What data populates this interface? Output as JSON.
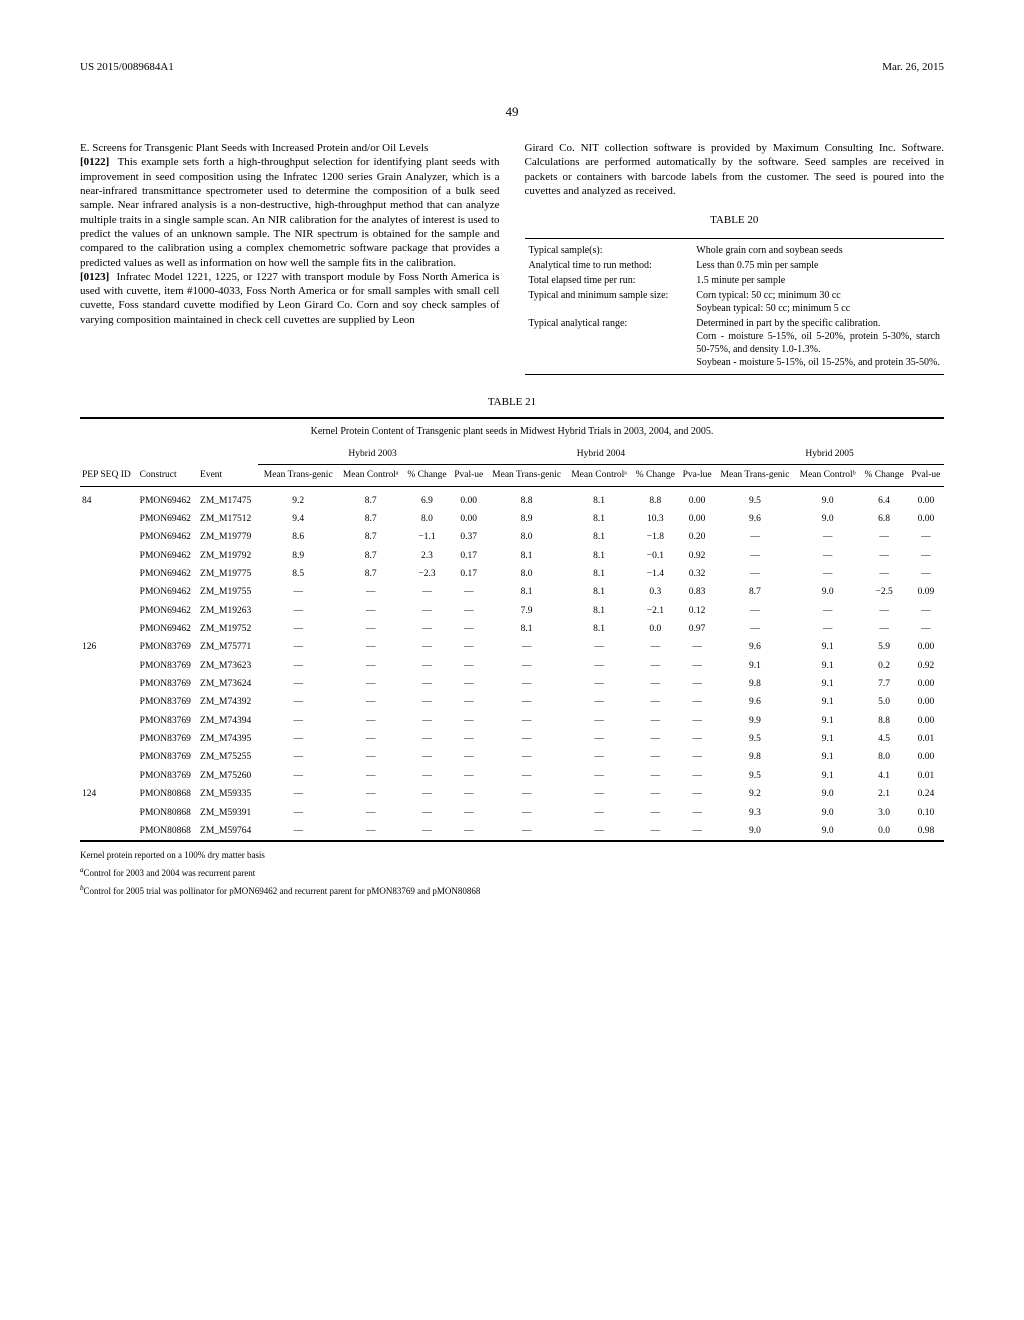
{
  "header": {
    "pub_number": "US 2015/0089684A1",
    "pub_date": "Mar. 26, 2015",
    "page_number": "49"
  },
  "left_col": {
    "section_title": "E. Screens for Transgenic Plant Seeds with Increased Protein and/or Oil Levels",
    "para1_num": "[0122]",
    "para1_text": "This example sets forth a high-throughput selection for identifying plant seeds with improvement in seed composition using the Infratec 1200 series Grain Analyzer, which is a near-infrared transmittance spectrometer used to determine the composition of a bulk seed sample. Near infrared analysis is a non-destructive, high-throughput method that can analyze multiple traits in a single sample scan. An NIR calibration for the analytes of interest is used to predict the values of an unknown sample. The NIR spectrum is obtained for the sample and compared to the calibration using a complex chemometric software package that provides a predicted values as well as information on how well the sample fits in the calibration.",
    "para2_num": "[0123]",
    "para2_text": "Infratec Model 1221, 1225, or 1227 with transport module by Foss North America is used with cuvette, item #1000-4033, Foss North America or for small samples with small cell cuvette, Foss standard cuvette modified by Leon Girard Co. Corn and soy check samples of varying composition maintained in check cell cuvettes are supplied by Leon"
  },
  "right_col": {
    "para_cont": "Girard Co. NIT collection software is provided by Maximum Consulting Inc. Software. Calculations are performed automatically by the software. Seed samples are received in packets or containers with barcode labels from the customer. The seed is poured into the cuvettes and analyzed as received."
  },
  "table20": {
    "title": "TABLE 20",
    "rows": [
      {
        "param": "Typical sample(s):",
        "val": "Whole grain corn and soybean seeds"
      },
      {
        "param": "Analytical time to run method:",
        "val": "Less than 0.75 min per sample"
      },
      {
        "param": "Total elapsed time per run:",
        "val": "1.5 minute per sample"
      },
      {
        "param": "Typical and minimum sample size:",
        "val": "Corn typical: 50 cc; minimum 30 cc\nSoybean typical: 50 cc; minimum 5 cc"
      },
      {
        "param": "Typical analytical range:",
        "val": "Determined in part by the specific calibration.\nCorn - moisture 5-15%, oil 5-20%, protein 5-30%, starch 50-75%, and density 1.0-1.3%.\nSoybean - moisture 5-15%, oil 15-25%, and protein 35-50%."
      }
    ]
  },
  "table21": {
    "title": "TABLE 21",
    "caption": "Kernel Protein Content of Transgenic plant seeds in Midwest Hybrid Trials in 2003, 2004, and 2005.",
    "year_groups": [
      "Hybrid 2003",
      "Hybrid 2004",
      "Hybrid 2005"
    ],
    "col_heads": {
      "seq": "PEP SEQ ID",
      "construct": "Construct",
      "event": "Event",
      "mt": "Mean Trans-genic",
      "mc_a": "Mean Controlᵃ",
      "mc_b": "Mean Controlᵇ",
      "pct": "% Change",
      "pv": "Pval-ue",
      "pva": "Pva-lue"
    },
    "rows": [
      {
        "seq": "84",
        "construct": "PMON69462",
        "event": "ZM_M17475",
        "h03": [
          "9.2",
          "8.7",
          "6.9",
          "0.00"
        ],
        "h04": [
          "8.8",
          "8.1",
          "8.8",
          "0.00"
        ],
        "h05": [
          "9.5",
          "9.0",
          "6.4",
          "0.00"
        ]
      },
      {
        "seq": "",
        "construct": "PMON69462",
        "event": "ZM_M17512",
        "h03": [
          "9.4",
          "8.7",
          "8.0",
          "0.00"
        ],
        "h04": [
          "8.9",
          "8.1",
          "10.3",
          "0.00"
        ],
        "h05": [
          "9.6",
          "9.0",
          "6.8",
          "0.00"
        ]
      },
      {
        "seq": "",
        "construct": "PMON69462",
        "event": "ZM_M19779",
        "h03": [
          "8.6",
          "8.7",
          "−1.1",
          "0.37"
        ],
        "h04": [
          "8.0",
          "8.1",
          "−1.8",
          "0.20"
        ],
        "h05": [
          "—",
          "—",
          "—",
          "—"
        ]
      },
      {
        "seq": "",
        "construct": "PMON69462",
        "event": "ZM_M19792",
        "h03": [
          "8.9",
          "8.7",
          "2.3",
          "0.17"
        ],
        "h04": [
          "8.1",
          "8.1",
          "−0.1",
          "0.92"
        ],
        "h05": [
          "—",
          "—",
          "—",
          "—"
        ]
      },
      {
        "seq": "",
        "construct": "PMON69462",
        "event": "ZM_M19775",
        "h03": [
          "8.5",
          "8.7",
          "−2.3",
          "0.17"
        ],
        "h04": [
          "8.0",
          "8.1",
          "−1.4",
          "0.32"
        ],
        "h05": [
          "—",
          "—",
          "—",
          "—"
        ]
      },
      {
        "seq": "",
        "construct": "PMON69462",
        "event": "ZM_M19755",
        "h03": [
          "—",
          "—",
          "—",
          "—"
        ],
        "h04": [
          "8.1",
          "8.1",
          "0.3",
          "0.83"
        ],
        "h05": [
          "8.7",
          "9.0",
          "−2.5",
          "0.09"
        ]
      },
      {
        "seq": "",
        "construct": "PMON69462",
        "event": "ZM_M19263",
        "h03": [
          "—",
          "—",
          "—",
          "—"
        ],
        "h04": [
          "7.9",
          "8.1",
          "−2.1",
          "0.12"
        ],
        "h05": [
          "—",
          "—",
          "—",
          "—"
        ]
      },
      {
        "seq": "",
        "construct": "PMON69462",
        "event": "ZM_M19752",
        "h03": [
          "—",
          "—",
          "—",
          "—"
        ],
        "h04": [
          "8.1",
          "8.1",
          "0.0",
          "0.97"
        ],
        "h05": [
          "—",
          "—",
          "—",
          "—"
        ]
      },
      {
        "seq": "126",
        "construct": "PMON83769",
        "event": "ZM_M75771",
        "h03": [
          "—",
          "—",
          "—",
          "—"
        ],
        "h04": [
          "—",
          "—",
          "—",
          "—"
        ],
        "h05": [
          "9.6",
          "9.1",
          "5.9",
          "0.00"
        ]
      },
      {
        "seq": "",
        "construct": "PMON83769",
        "event": "ZM_M73623",
        "h03": [
          "—",
          "—",
          "—",
          "—"
        ],
        "h04": [
          "—",
          "—",
          "—",
          "—"
        ],
        "h05": [
          "9.1",
          "9.1",
          "0.2",
          "0.92"
        ]
      },
      {
        "seq": "",
        "construct": "PMON83769",
        "event": "ZM_M73624",
        "h03": [
          "—",
          "—",
          "—",
          "—"
        ],
        "h04": [
          "—",
          "—",
          "—",
          "—"
        ],
        "h05": [
          "9.8",
          "9.1",
          "7.7",
          "0.00"
        ]
      },
      {
        "seq": "",
        "construct": "PMON83769",
        "event": "ZM_M74392",
        "h03": [
          "—",
          "—",
          "—",
          "—"
        ],
        "h04": [
          "—",
          "—",
          "—",
          "—"
        ],
        "h05": [
          "9.6",
          "9.1",
          "5.0",
          "0.00"
        ]
      },
      {
        "seq": "",
        "construct": "PMON83769",
        "event": "ZM_M74394",
        "h03": [
          "—",
          "—",
          "—",
          "—"
        ],
        "h04": [
          "—",
          "—",
          "—",
          "—"
        ],
        "h05": [
          "9.9",
          "9.1",
          "8.8",
          "0.00"
        ]
      },
      {
        "seq": "",
        "construct": "PMON83769",
        "event": "ZM_M74395",
        "h03": [
          "—",
          "—",
          "—",
          "—"
        ],
        "h04": [
          "—",
          "—",
          "—",
          "—"
        ],
        "h05": [
          "9.5",
          "9.1",
          "4.5",
          "0.01"
        ]
      },
      {
        "seq": "",
        "construct": "PMON83769",
        "event": "ZM_M75255",
        "h03": [
          "—",
          "—",
          "—",
          "—"
        ],
        "h04": [
          "—",
          "—",
          "—",
          "—"
        ],
        "h05": [
          "9.8",
          "9.1",
          "8.0",
          "0.00"
        ]
      },
      {
        "seq": "",
        "construct": "PMON83769",
        "event": "ZM_M75260",
        "h03": [
          "—",
          "—",
          "—",
          "—"
        ],
        "h04": [
          "—",
          "—",
          "—",
          "—"
        ],
        "h05": [
          "9.5",
          "9.1",
          "4.1",
          "0.01"
        ]
      },
      {
        "seq": "124",
        "construct": "PMON80868",
        "event": "ZM_M59335",
        "h03": [
          "—",
          "—",
          "—",
          "—"
        ],
        "h04": [
          "—",
          "—",
          "—",
          "—"
        ],
        "h05": [
          "9.2",
          "9.0",
          "2.1",
          "0.24"
        ]
      },
      {
        "seq": "",
        "construct": "PMON80868",
        "event": "ZM_M59391",
        "h03": [
          "—",
          "—",
          "—",
          "—"
        ],
        "h04": [
          "—",
          "—",
          "—",
          "—"
        ],
        "h05": [
          "9.3",
          "9.0",
          "3.0",
          "0.10"
        ]
      },
      {
        "seq": "",
        "construct": "PMON80868",
        "event": "ZM_M59764",
        "h03": [
          "—",
          "—",
          "—",
          "—"
        ],
        "h04": [
          "—",
          "—",
          "—",
          "—"
        ],
        "h05": [
          "9.0",
          "9.0",
          "0.0",
          "0.98"
        ]
      }
    ],
    "footnotes": {
      "main": "Kernel protein reported on a 100% dry matter basis",
      "a": "Control for 2003 and 2004 was recurrent parent",
      "b": "Control for 2005 trial was pollinator for pMON69462 and recurrent parent for pMON83769 and pMON80868"
    }
  }
}
